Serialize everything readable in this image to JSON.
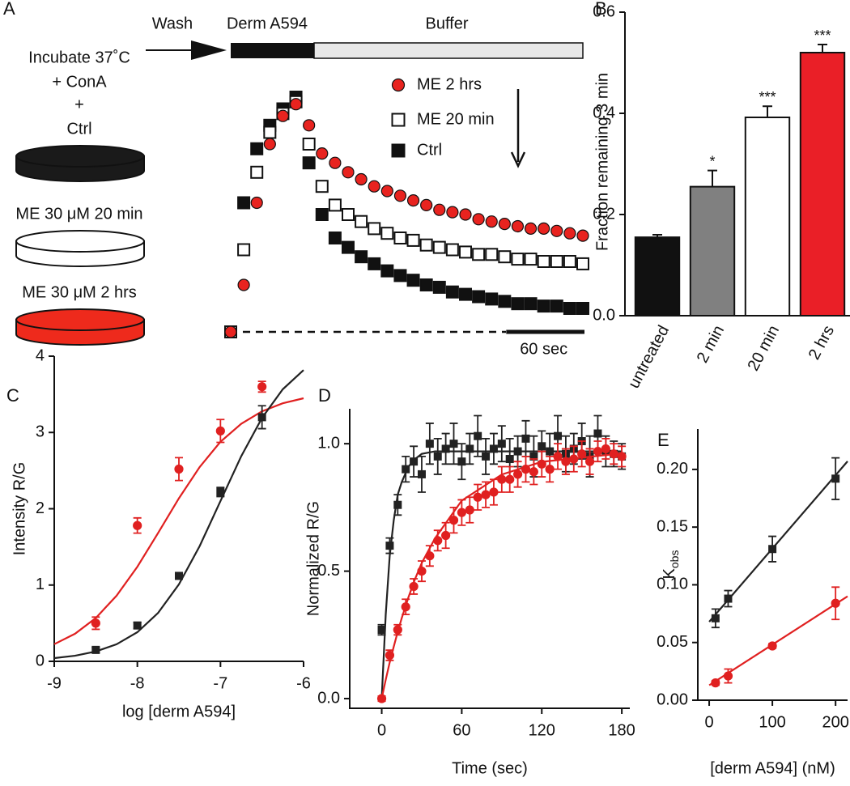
{
  "chart_data": [
    {
      "type": "trace",
      "panel_label": "A",
      "protocol_steps": [
        "Wash",
        "Derm A594",
        "Buffer"
      ],
      "incubation": [
        "Incubate 37˚C",
        "+ ConA",
        "+"
      ],
      "conditions": [
        {
          "name": "Ctrl",
          "color": "#1a1a1a"
        },
        {
          "name": "ME 30 μM 20 min",
          "color": "#ffffff"
        },
        {
          "name": "ME 30 μM 2 hrs",
          "color": "#ee2a1c"
        }
      ],
      "x": [
        0,
        10,
        20,
        30,
        40,
        50,
        60,
        70,
        80,
        90,
        100,
        110,
        120,
        130,
        140,
        150,
        160,
        170,
        180,
        190,
        200,
        210,
        220,
        230,
        240,
        250,
        260,
        270
      ],
      "series": [
        {
          "name": "ME 2 hrs",
          "color": "#e8231f",
          "marker": "circle",
          "values": [
            0,
            0.2,
            0.55,
            0.8,
            0.92,
            0.97,
            0.88,
            0.76,
            0.72,
            0.68,
            0.65,
            0.62,
            0.6,
            0.58,
            0.56,
            0.54,
            0.52,
            0.51,
            0.5,
            0.48,
            0.47,
            0.46,
            0.45,
            0.44,
            0.44,
            0.43,
            0.42,
            0.41
          ]
        },
        {
          "name": "ME 20 min",
          "color": "#ffffff",
          "marker": "square",
          "values": [
            0,
            0.35,
            0.68,
            0.85,
            0.93,
            0.98,
            0.8,
            0.62,
            0.54,
            0.5,
            0.47,
            0.44,
            0.42,
            0.4,
            0.39,
            0.37,
            0.36,
            0.35,
            0.34,
            0.33,
            0.33,
            0.32,
            0.31,
            0.31,
            0.3,
            0.3,
            0.3,
            0.29
          ]
        },
        {
          "name": "Ctrl",
          "color": "#111111",
          "marker": "square",
          "values": [
            0,
            0.55,
            0.78,
            0.88,
            0.95,
            1.0,
            0.72,
            0.5,
            0.4,
            0.36,
            0.32,
            0.29,
            0.26,
            0.24,
            0.22,
            0.2,
            0.19,
            0.17,
            0.16,
            0.15,
            0.14,
            0.13,
            0.12,
            0.12,
            0.11,
            0.11,
            0.1,
            0.1
          ]
        }
      ],
      "scale_bar": {
        "value": 60,
        "label": "60 sec"
      }
    },
    {
      "type": "bar",
      "panel_label": "B",
      "y_label": "Fraction remaining 3 min",
      "categories": [
        "untreated",
        "2 min",
        "20 min",
        "2 hrs"
      ],
      "values": [
        0.155,
        0.255,
        0.392,
        0.52
      ],
      "errors": [
        0.005,
        0.032,
        0.022,
        0.016
      ],
      "colors": [
        "#111111",
        "#808080",
        "#ffffff",
        "#ea1f27"
      ],
      "annotations": [
        null,
        "*",
        "***",
        "***"
      ],
      "ylim": [
        0,
        0.6
      ],
      "yticks": [
        {
          "value": 0,
          "label": "0.0"
        },
        {
          "value": 0.2,
          "label": "0.2"
        },
        {
          "value": 0.4,
          "label": "0.4"
        },
        {
          "value": 0.6,
          "label": "0.6"
        }
      ]
    },
    {
      "type": "scatter",
      "panel_label": "C",
      "x_label": "log [derm A594]",
      "y_label": "Intensity R/G",
      "xlim": [
        -9,
        -6
      ],
      "xticks": [
        -9,
        -8,
        -7,
        -6
      ],
      "ylim": [
        0,
        4
      ],
      "yticks": [
        0,
        1,
        2,
        3,
        4
      ],
      "series": [
        {
          "color": "#e02020",
          "marker": "circle",
          "x": [
            -8.5,
            -8,
            -7.5,
            -7,
            -6.5
          ],
          "values": [
            0.5,
            1.78,
            2.52,
            3.02,
            3.6
          ],
          "errors": [
            0.08,
            0.1,
            0.15,
            0.15,
            0.07
          ],
          "fit": {
            "x": [
              -9,
              -8.75,
              -8.5,
              -8.25,
              -8,
              -7.75,
              -7.5,
              -7.25,
              -7,
              -6.75,
              -6.5,
              -6.25,
              -6
            ],
            "values": [
              0.225,
              0.362,
              0.568,
              0.86,
              1.24,
              1.683,
              2.137,
              2.547,
              2.877,
              3.114,
              3.277,
              3.382,
              3.448
            ]
          }
        },
        {
          "color": "#222222",
          "marker": "square",
          "x": [
            -8.5,
            -8,
            -7.5,
            -7,
            -6.5
          ],
          "values": [
            0.15,
            0.47,
            1.12,
            2.22,
            3.2
          ],
          "errors": [
            0.03,
            0.04,
            0.04,
            0.06,
            0.15
          ],
          "fit": {
            "x": [
              -9,
              -8.75,
              -8.5,
              -8.25,
              -8,
              -7.75,
              -7.5,
              -7.25,
              -7,
              -6.75,
              -6.5,
              -6.25,
              -6
            ],
            "values": [
              0.042,
              0.073,
              0.129,
              0.224,
              0.382,
              0.634,
              1.009,
              1.512,
              2.1,
              2.689,
              3.191,
              3.566,
              3.818
            ]
          }
        }
      ]
    },
    {
      "type": "scatter",
      "panel_label": "D",
      "x_label": "Time (sec)",
      "y_label": "Normalized R/G",
      "xlim": [
        -24,
        186
      ],
      "xticks": [
        0,
        60,
        120,
        180
      ],
      "ylim": [
        -0.038,
        1.137
      ],
      "yticks": [
        {
          "value": 0,
          "label": "0.0"
        },
        {
          "value": 0.5,
          "label": "0.5"
        },
        {
          "value": 1,
          "label": "1.0"
        }
      ],
      "series": [
        {
          "color": "#222222",
          "marker": "square",
          "x": [
            0,
            6,
            12,
            18,
            24,
            30,
            36,
            42,
            48,
            54,
            60,
            66,
            72,
            78,
            84,
            90,
            96,
            102,
            108,
            114,
            120,
            126,
            132,
            138,
            144,
            150,
            156,
            162,
            168,
            174,
            180
          ],
          "values": [
            0.27,
            0.6,
            0.76,
            0.9,
            0.93,
            0.88,
            1.0,
            0.95,
            0.98,
            1.0,
            0.93,
            0.98,
            1.03,
            0.95,
            0.98,
            1.0,
            0.94,
            0.97,
            1.02,
            0.95,
            0.99,
            0.97,
            1.03,
            0.96,
            0.98,
            1.01,
            0.95,
            1.04,
            0.97,
            0.96,
            0.95
          ],
          "errors": [
            0.02,
            0.03,
            0.04,
            0.05,
            0.06,
            0.07,
            0.08,
            0.07,
            0.06,
            0.08,
            0.07,
            0.06,
            0.08,
            0.07,
            0.06,
            0.07,
            0.08,
            0.06,
            0.07,
            0.08,
            0.06,
            0.07,
            0.08,
            0.07,
            0.06,
            0.07,
            0.08,
            0.07,
            0.06,
            0.05,
            0.05
          ],
          "fit": {
            "x": [
              0,
              3,
              6,
              9,
              12,
              15,
              20,
              25,
              30,
              40,
              60,
              90,
              120,
              180
            ],
            "values": [
              0,
              0.33,
              0.56,
              0.7,
              0.8,
              0.85,
              0.91,
              0.94,
              0.96,
              0.97,
              0.97,
              0.97,
              0.97,
              0.97
            ]
          }
        },
        {
          "color": "#e02020",
          "marker": "circle",
          "x": [
            0,
            6,
            12,
            18,
            24,
            30,
            36,
            42,
            48,
            54,
            60,
            66,
            72,
            78,
            84,
            90,
            96,
            102,
            108,
            114,
            120,
            126,
            132,
            138,
            144,
            150,
            156,
            162,
            168,
            174,
            180
          ],
          "values": [
            0.0,
            0.17,
            0.27,
            0.36,
            0.44,
            0.5,
            0.56,
            0.62,
            0.64,
            0.7,
            0.73,
            0.74,
            0.79,
            0.8,
            0.81,
            0.86,
            0.86,
            0.88,
            0.9,
            0.89,
            0.92,
            0.9,
            0.95,
            0.93,
            0.94,
            0.96,
            0.93,
            0.97,
            0.98,
            0.96,
            0.95
          ],
          "errors": [
            0.01,
            0.02,
            0.02,
            0.03,
            0.03,
            0.04,
            0.04,
            0.04,
            0.05,
            0.05,
            0.05,
            0.05,
            0.05,
            0.05,
            0.05,
            0.05,
            0.05,
            0.05,
            0.05,
            0.05,
            0.05,
            0.05,
            0.05,
            0.05,
            0.05,
            0.05,
            0.05,
            0.04,
            0.04,
            0.04,
            0.04
          ],
          "fit": {
            "x": [
              0,
              3,
              6,
              9,
              12,
              15,
              20,
              25,
              30,
              40,
              60,
              90,
              120,
              180
            ],
            "values": [
              0,
              0.074,
              0.142,
              0.204,
              0.262,
              0.316,
              0.397,
              0.469,
              0.532,
              0.629,
              0.777,
              0.879,
              0.929,
              0.962
            ]
          }
        }
      ]
    },
    {
      "type": "scatter",
      "panel_label": "E",
      "x_label": "[derm A594] (nM)",
      "y_label": {
        "text": "K",
        "subscript": "obs"
      },
      "xlim": [
        -18,
        219
      ],
      "xticks": [
        0,
        100,
        200
      ],
      "ylim": [
        0,
        0.235
      ],
      "yticks": [
        {
          "value": 0,
          "label": "0.00"
        },
        {
          "value": 0.05,
          "label": "0.05"
        },
        {
          "value": 0.1,
          "label": "0.10"
        },
        {
          "value": 0.15,
          "label": "0.15"
        },
        {
          "value": 0.2,
          "label": "0.20"
        }
      ],
      "series": [
        {
          "color": "#222222",
          "marker": "square",
          "x": [
            10,
            30,
            100,
            200
          ],
          "values": [
            0.071,
            0.088,
            0.131,
            0.192
          ],
          "errors": [
            0.008,
            0.007,
            0.011,
            0.018
          ],
          "fit": {
            "x": [
              0,
              219
            ],
            "values": [
              0.068,
              0.207
            ]
          }
        },
        {
          "color": "#e02020",
          "marker": "circle",
          "x": [
            10,
            30,
            100,
            200
          ],
          "values": [
            0.015,
            0.021,
            0.047,
            0.084
          ],
          "errors": [
            0.002,
            0.006,
            0.002,
            0.014
          ],
          "fit": {
            "x": [
              0,
              219
            ],
            "values": [
              0.013,
              0.09
            ]
          }
        }
      ]
    }
  ]
}
